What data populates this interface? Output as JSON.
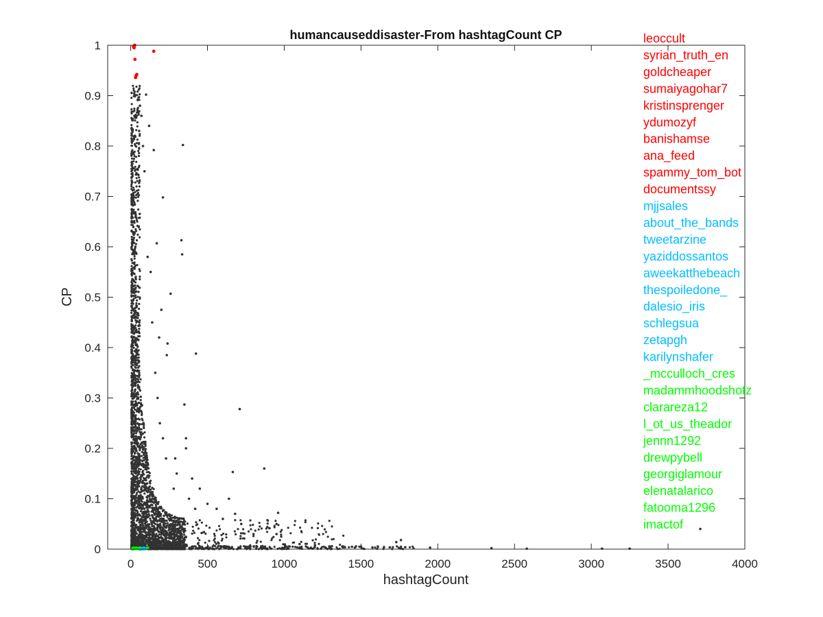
{
  "chart_data": {
    "type": "scatter",
    "title": "humancauseddisaster-From hashtagCount CP",
    "xlabel": "hashtagCount",
    "ylabel": "CP",
    "xlim": [
      -150,
      4000
    ],
    "ylim": [
      0,
      1
    ],
    "xticks": [
      0,
      500,
      1000,
      1500,
      2000,
      2500,
      3000,
      3500,
      4000
    ],
    "yticks": [
      0,
      0.1,
      0.2,
      0.3,
      0.4,
      0.5,
      0.6,
      0.7,
      0.8,
      0.9,
      1
    ],
    "grid": false,
    "legend_position": "right",
    "colors": {
      "background": "#333333",
      "red": "#ff0000",
      "blue": "#00bfff",
      "green": "#00ff00"
    },
    "series": [
      {
        "group": "red",
        "color": "#ff0000",
        "points": [
          [
            18,
            0.998
          ],
          [
            22,
            0.995
          ],
          [
            26,
            1.0
          ],
          [
            150,
            0.988
          ],
          [
            28,
            0.972
          ],
          [
            36,
            0.94
          ],
          [
            32,
            0.936
          ],
          [
            40,
            0.942
          ],
          [
            20,
            0.996
          ],
          [
            24,
            0.999
          ]
        ]
      },
      {
        "group": "blue",
        "color": "#00bfff",
        "points": [
          [
            40,
            0.001
          ],
          [
            55,
            0.001
          ],
          [
            62,
            0.002
          ],
          [
            70,
            0.001
          ],
          [
            78,
            0.001
          ],
          [
            85,
            0.002
          ],
          [
            92,
            0.001
          ],
          [
            100,
            0.001
          ],
          [
            60,
            0.0
          ],
          [
            75,
            0.0
          ]
        ]
      },
      {
        "group": "green",
        "color": "#00ff00",
        "points": [
          [
            12,
            0.001
          ],
          [
            18,
            0.002
          ],
          [
            24,
            0.001
          ],
          [
            30,
            0.001
          ],
          [
            35,
            0.002
          ],
          [
            42,
            0.001
          ],
          [
            50,
            0.001
          ],
          [
            58,
            0.002
          ],
          [
            110,
            0.002
          ],
          [
            15,
            0.0
          ]
        ]
      },
      {
        "group": "background",
        "color": "#333333",
        "points": [
          [
            340,
            0.802
          ],
          [
            100,
            0.902
          ],
          [
            150,
            0.792
          ],
          [
            210,
            0.698
          ],
          [
            330,
            0.613
          ],
          [
            335,
            0.585
          ],
          [
            170,
            0.607
          ],
          [
            260,
            0.507
          ],
          [
            200,
            0.475
          ],
          [
            240,
            0.408
          ],
          [
            425,
            0.388
          ],
          [
            235,
            0.385
          ],
          [
            185,
            0.42
          ],
          [
            350,
            0.287
          ],
          [
            360,
            0.22
          ],
          [
            360,
            0.2
          ],
          [
            710,
            0.278
          ],
          [
            665,
            0.153
          ],
          [
            870,
            0.16
          ],
          [
            640,
            0.1
          ],
          [
            960,
            0.072
          ],
          [
            950,
            0.05
          ],
          [
            950,
            0.03
          ],
          [
            1760,
            0.018
          ],
          [
            1730,
            0.014
          ],
          [
            2350,
            0.002
          ],
          [
            3710,
            0.04
          ],
          [
            1500,
            0.005
          ],
          [
            1650,
            0.004
          ],
          [
            1950,
            0.003
          ],
          [
            2580,
            0.001
          ],
          [
            3070,
            0.001
          ],
          [
            3250,
            0.001
          ],
          [
            1100,
            0.01
          ],
          [
            1200,
            0.008
          ],
          [
            800,
            0.03
          ],
          [
            720,
            0.05
          ],
          [
            680,
            0.07
          ],
          [
            500,
            0.09
          ],
          [
            560,
            0.08
          ],
          [
            600,
            0.06
          ],
          [
            450,
            0.12
          ],
          [
            400,
            0.14
          ],
          [
            380,
            0.1
          ],
          [
            420,
            0.08
          ],
          [
            300,
            0.15
          ],
          [
            290,
            0.18
          ],
          [
            280,
            0.12
          ],
          [
            120,
            0.84
          ],
          [
            70,
            0.86
          ],
          [
            60,
            0.88
          ],
          [
            55,
            0.83
          ],
          [
            80,
            0.8
          ],
          [
            90,
            0.75
          ],
          [
            110,
            0.58
          ],
          [
            130,
            0.55
          ],
          [
            140,
            0.45
          ],
          [
            160,
            0.35
          ],
          [
            175,
            0.3
          ],
          [
            190,
            0.25
          ],
          [
            210,
            0.22
          ],
          [
            230,
            0.18
          ]
        ]
      }
    ],
    "legend": [
      {
        "label": "leoccult",
        "color": "#ff0000"
      },
      {
        "label": "syrian_truth_en",
        "color": "#ff0000"
      },
      {
        "label": "goldcheaper",
        "color": "#ff0000"
      },
      {
        "label": "sumaiyagohar7",
        "color": "#ff0000"
      },
      {
        "label": "kristinsprenger",
        "color": "#ff0000"
      },
      {
        "label": "ydumozyf",
        "color": "#ff0000"
      },
      {
        "label": "banishamse",
        "color": "#ff0000"
      },
      {
        "label": "ana_feed",
        "color": "#ff0000"
      },
      {
        "label": "spammy_tom_bot",
        "color": "#ff0000"
      },
      {
        "label": "documentssy",
        "color": "#ff0000"
      },
      {
        "label": "mjjsales",
        "color": "#00bfff"
      },
      {
        "label": "about_the_bands",
        "color": "#00bfff"
      },
      {
        "label": "tweetarzine",
        "color": "#00bfff"
      },
      {
        "label": "yaziddossantos",
        "color": "#00bfff"
      },
      {
        "label": "aweekatthebeach",
        "color": "#00bfff"
      },
      {
        "label": "thespoiledone_",
        "color": "#00bfff"
      },
      {
        "label": "dalesio_iris",
        "color": "#00bfff"
      },
      {
        "label": "schlegsua",
        "color": "#00bfff"
      },
      {
        "label": "zetapgh",
        "color": "#00bfff"
      },
      {
        "label": "karilynshafer",
        "color": "#00bfff"
      },
      {
        "label": "_mcculloch_cres",
        "color": "#00ff00"
      },
      {
        "label": "madammhoodshotz",
        "color": "#00ff00"
      },
      {
        "label": "clarareza12",
        "color": "#00ff00"
      },
      {
        "label": "l_ot_us_theador",
        "color": "#00ff00"
      },
      {
        "label": "jennn1292",
        "color": "#00ff00"
      },
      {
        "label": "drewpybell",
        "color": "#00ff00"
      },
      {
        "label": "georgiglamour",
        "color": "#00ff00"
      },
      {
        "label": "elenatalarico",
        "color": "#00ff00"
      },
      {
        "label": "fatooma1296",
        "color": "#00ff00"
      },
      {
        "label": "imactof",
        "color": "#00ff00"
      }
    ]
  }
}
